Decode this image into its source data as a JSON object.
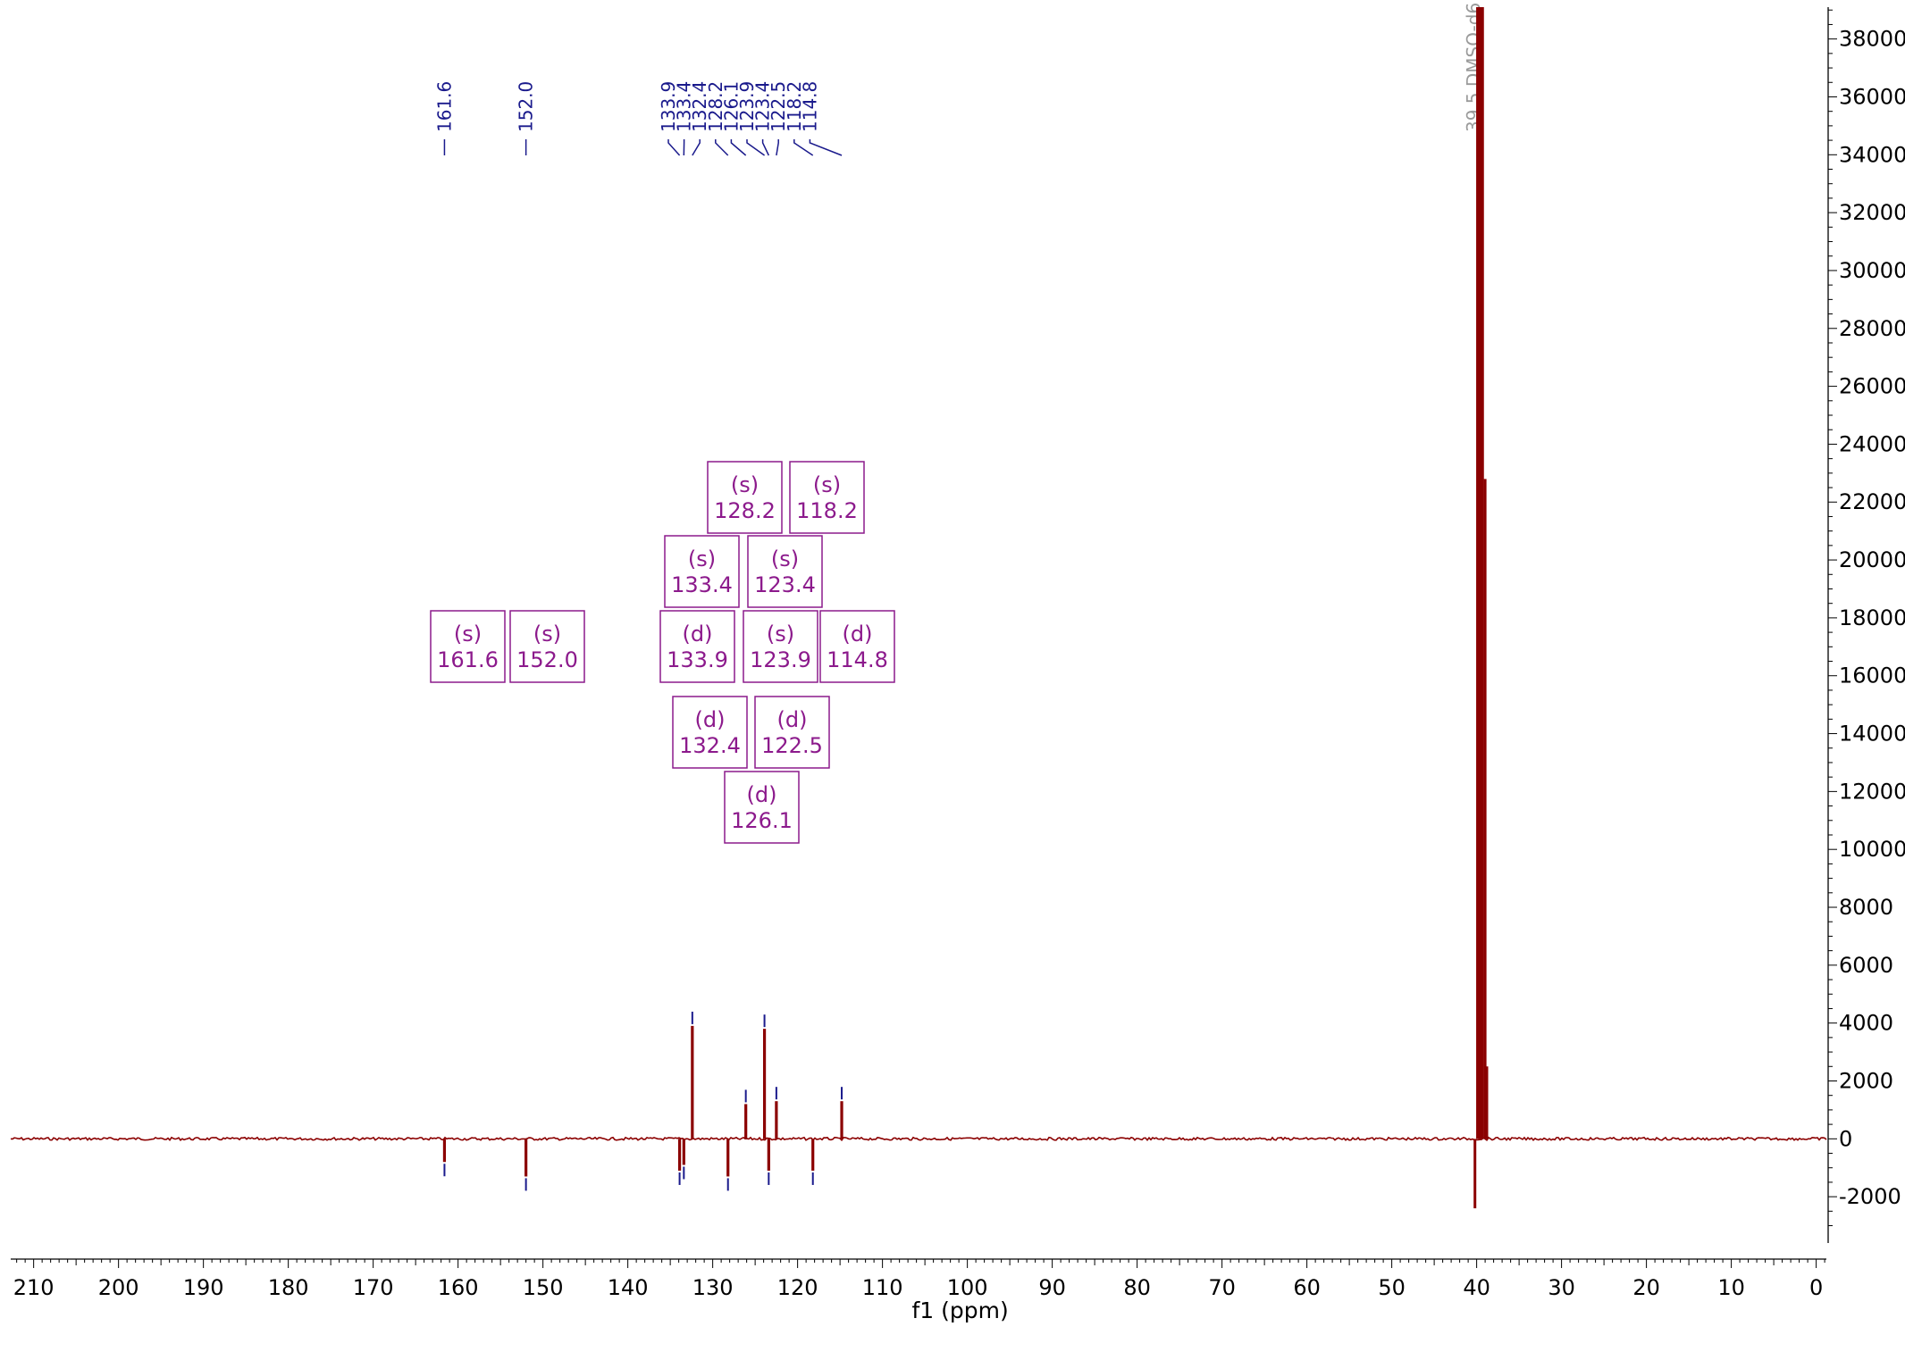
{
  "chart_data": {
    "type": "line",
    "title": "",
    "xlabel": "f1 (ppm)",
    "ylabel": "",
    "xlim": [
      212.7,
      -1.2
    ],
    "ylim": [
      -3600,
      39100
    ],
    "x_ticks": [
      210,
      200,
      190,
      180,
      170,
      160,
      150,
      140,
      130,
      120,
      110,
      100,
      90,
      80,
      70,
      60,
      50,
      40,
      30,
      20,
      10,
      0
    ],
    "y_ticks": [
      38000,
      36000,
      34000,
      32000,
      30000,
      28000,
      26000,
      24000,
      22000,
      20000,
      18000,
      16000,
      14000,
      12000,
      10000,
      8000,
      6000,
      4000,
      2000,
      0,
      -2000
    ],
    "y_tick_labels": [
      "38000",
      "36000",
      "34000",
      "32000",
      "30000",
      "28000",
      "26000",
      "24000",
      "22000",
      "20000",
      "18000",
      "16000",
      "14000",
      "12000",
      "10000",
      "8000",
      "6000",
      "4000",
      "2000",
      "0",
      "-2000"
    ],
    "peak_labels": [
      "161.6",
      "152.0",
      "133.9",
      "133.4",
      "132.4",
      "128.2",
      "126.1",
      "123.9",
      "123.4",
      "122.5",
      "118.2",
      "114.8"
    ],
    "solvent_label": "39.5 DMSO-d6",
    "peaks": [
      {
        "ppm": 161.6,
        "intensity": -800
      },
      {
        "ppm": 152.0,
        "intensity": -1300
      },
      {
        "ppm": 133.9,
        "intensity": -1100
      },
      {
        "ppm": 133.4,
        "intensity": -900
      },
      {
        "ppm": 132.4,
        "intensity": 3900
      },
      {
        "ppm": 128.2,
        "intensity": -1300
      },
      {
        "ppm": 126.1,
        "intensity": 1200
      },
      {
        "ppm": 123.9,
        "intensity": 3800
      },
      {
        "ppm": 123.4,
        "intensity": -1100
      },
      {
        "ppm": 122.5,
        "intensity": 1300
      },
      {
        "ppm": 118.2,
        "intensity": -1100
      },
      {
        "ppm": 114.8,
        "intensity": 1300
      }
    ],
    "multiplet_boxes": [
      {
        "mult": "(s)",
        "ppm": "128.2"
      },
      {
        "mult": "(s)",
        "ppm": "118.2"
      },
      {
        "mult": "(s)",
        "ppm": "133.4"
      },
      {
        "mult": "(s)",
        "ppm": "123.4"
      },
      {
        "mult": "(s)",
        "ppm": "161.6"
      },
      {
        "mult": "(s)",
        "ppm": "152.0"
      },
      {
        "mult": "(d)",
        "ppm": "133.9"
      },
      {
        "mult": "(s)",
        "ppm": "123.9"
      },
      {
        "mult": "(d)",
        "ppm": "114.8"
      },
      {
        "mult": "(d)",
        "ppm": "132.4"
      },
      {
        "mult": "(d)",
        "ppm": "122.5"
      },
      {
        "mult": "(d)",
        "ppm": "126.1"
      }
    ],
    "colors": {
      "spectrum": "#8b0000",
      "peak_label": "#1a1a8c",
      "box": "#8c1a8c",
      "solvent_label": "#9a9a9a"
    }
  }
}
